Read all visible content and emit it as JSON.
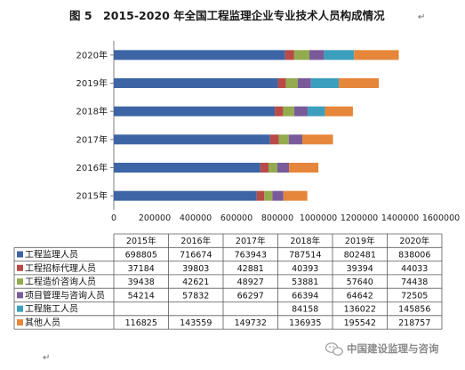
{
  "figure": {
    "title": "图 5　2015-2020 年全国工程监理企业专业技术人员构成情况",
    "title_tail_mark": "↵",
    "bottom_mark": "↵"
  },
  "watermark": {
    "text": "中国建设监理与咨询",
    "icon": "wechat-icon"
  },
  "chart_data": {
    "type": "bar",
    "orientation": "horizontal",
    "stacked": true,
    "categories": [
      "2015年",
      "2016年",
      "2017年",
      "2018年",
      "2019年",
      "2020年"
    ],
    "xlim": [
      0,
      1600000
    ],
    "xticks": [
      "0",
      "200000",
      "400000",
      "600000",
      "800000",
      "1000000",
      "1200000",
      "1400000",
      "1600000"
    ],
    "grid": false,
    "legend": "table-below",
    "series": [
      {
        "name": "工程监理人员",
        "color": "#3d65a6",
        "values": [
          "698805",
          "716674",
          "763943",
          "787514",
          "802481",
          "838006"
        ]
      },
      {
        "name": "工程招标代理人员",
        "color": "#b94a48",
        "values": [
          "37184",
          "39803",
          "42881",
          "40393",
          "39394",
          "44033"
        ]
      },
      {
        "name": "工程造价咨询人员",
        "color": "#93ab4f",
        "values": [
          "39438",
          "42621",
          "48927",
          "53881",
          "57640",
          "74438"
        ]
      },
      {
        "name": "项目管理与咨询人员",
        "color": "#7a5b9a",
        "values": [
          "54214",
          "57832",
          "66297",
          "66394",
          "64642",
          "72505"
        ]
      },
      {
        "name": "工程施工人员",
        "color": "#3c9fbe",
        "values": [
          "",
          "",
          "",
          "84158",
          "136022",
          "145856"
        ]
      },
      {
        "name": "其他人员",
        "color": "#e6863a",
        "values": [
          "116825",
          "143559",
          "149732",
          "136935",
          "195542",
          "218757"
        ]
      }
    ]
  }
}
